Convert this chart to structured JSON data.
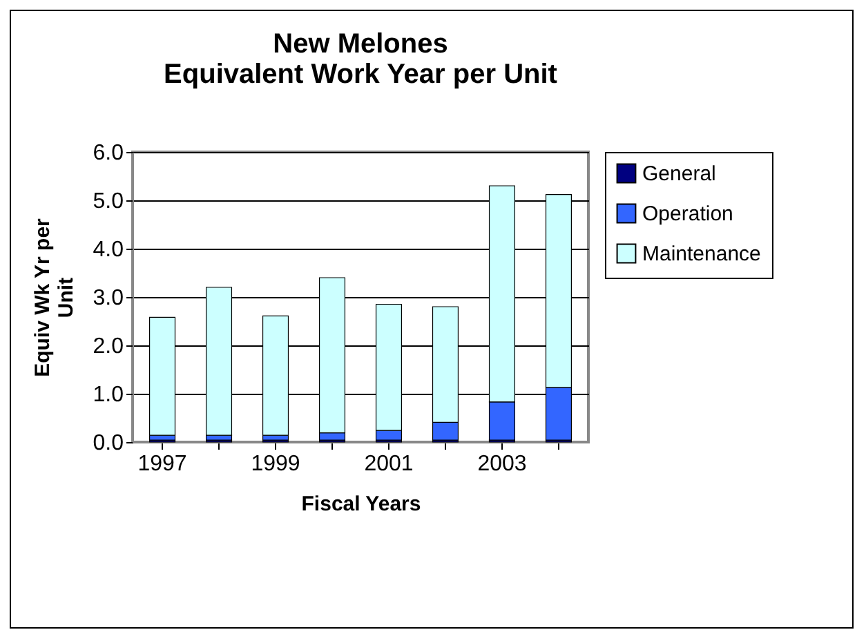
{
  "chart_data": {
    "type": "bar",
    "title": "New Melones\nEquivalent Work Year per Unit",
    "xlabel": "Fiscal Years",
    "ylabel": "Equiv Wk Yr per Unit",
    "categories": [
      "1997",
      null,
      "1999",
      null,
      "2001",
      null,
      "2003",
      null
    ],
    "stacked": true,
    "series": [
      {
        "name": "General",
        "color": "#000080",
        "values": [
          0.04,
          0.04,
          0.04,
          0.04,
          0.04,
          0.04,
          0.04,
          0.04
        ]
      },
      {
        "name": "Operation",
        "color": "#3366ff",
        "values": [
          0.1,
          0.1,
          0.1,
          0.15,
          0.2,
          0.37,
          0.79,
          1.09
        ]
      },
      {
        "name": "Maintenance",
        "color": "#ccffff",
        "values": [
          2.44,
          3.06,
          2.47,
          3.21,
          2.61,
          2.39,
          4.47,
          3.99
        ]
      }
    ],
    "ylim": [
      0,
      6
    ],
    "yticks": [
      {
        "value": 0,
        "label": "0.0"
      },
      {
        "value": 1,
        "label": "1.0"
      },
      {
        "value": 2,
        "label": "2.0"
      },
      {
        "value": 3,
        "label": "3.0"
      },
      {
        "value": 4,
        "label": "4.0"
      },
      {
        "value": 5,
        "label": "5.0"
      },
      {
        "value": 6,
        "label": "6.0"
      }
    ],
    "grid": "y",
    "legend": "right"
  }
}
